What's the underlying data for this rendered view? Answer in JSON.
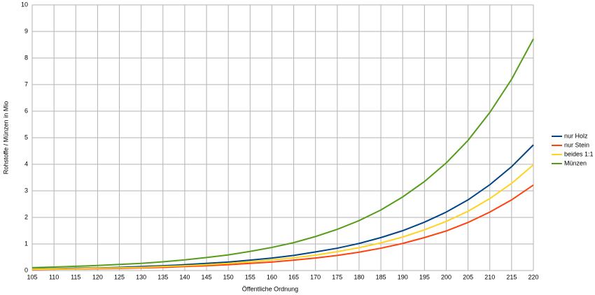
{
  "chart_data": {
    "type": "line",
    "xlabel": "Öffentliche Ordnung",
    "ylabel": "Rohstoffe / Münzen  in Mio",
    "x": [
      105,
      110,
      115,
      120,
      125,
      130,
      135,
      140,
      145,
      150,
      155,
      160,
      165,
      170,
      175,
      180,
      185,
      190,
      195,
      200,
      205,
      210,
      215,
      220
    ],
    "series": [
      {
        "name": "nur Holz",
        "color": "#004586",
        "values": [
          0.06,
          0.07,
          0.09,
          0.1,
          0.12,
          0.15,
          0.18,
          0.22,
          0.27,
          0.32,
          0.39,
          0.47,
          0.57,
          0.7,
          0.84,
          1.02,
          1.24,
          1.5,
          1.82,
          2.2,
          2.66,
          3.23,
          3.91,
          4.73
        ]
      },
      {
        "name": "nur Stein",
        "color": "#ff420e",
        "values": [
          0.04,
          0.05,
          0.06,
          0.07,
          0.08,
          0.1,
          0.12,
          0.15,
          0.18,
          0.22,
          0.27,
          0.32,
          0.39,
          0.47,
          0.57,
          0.69,
          0.84,
          1.02,
          1.24,
          1.49,
          1.81,
          2.2,
          2.66,
          3.22
        ]
      },
      {
        "name": "beides 1:1",
        "color": "#ffd320",
        "values": [
          0.05,
          0.06,
          0.07,
          0.09,
          0.1,
          0.12,
          0.15,
          0.18,
          0.22,
          0.27,
          0.33,
          0.4,
          0.48,
          0.58,
          0.71,
          0.86,
          1.04,
          1.26,
          1.53,
          1.85,
          2.23,
          2.71,
          3.28,
          3.98
        ]
      },
      {
        "name": "Münzen",
        "color": "#579d1c",
        "values": [
          0.11,
          0.13,
          0.16,
          0.19,
          0.23,
          0.27,
          0.33,
          0.4,
          0.49,
          0.59,
          0.72,
          0.87,
          1.05,
          1.28,
          1.55,
          1.88,
          2.28,
          2.77,
          3.35,
          4.05,
          4.9,
          5.95,
          7.2,
          8.72
        ]
      }
    ],
    "xlim": [
      105,
      220
    ],
    "xticks": [
      105,
      110,
      115,
      120,
      125,
      130,
      135,
      140,
      145,
      150,
      155,
      160,
      165,
      170,
      175,
      180,
      185,
      190,
      195,
      200,
      205,
      210,
      215,
      220
    ],
    "ylim": [
      0,
      10
    ],
    "yticks": [
      0,
      1,
      2,
      3,
      4,
      5,
      6,
      7,
      8,
      9,
      10
    ],
    "grid": true,
    "legend": "right"
  }
}
